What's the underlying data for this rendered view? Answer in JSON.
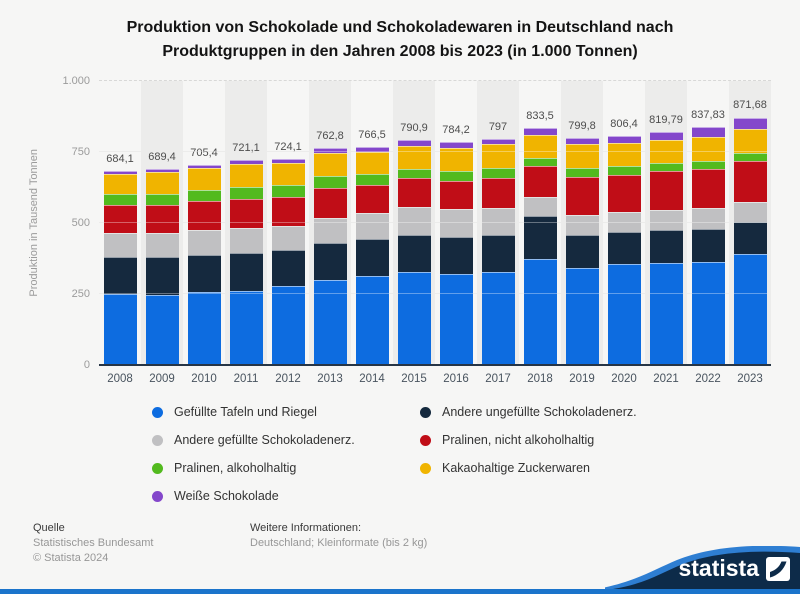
{
  "header": {
    "title_line1": "Produktion von Schokolade und Schokoladewaren in Deutschland nach",
    "title_line2": "Produktgruppen in den Jahren 2008 bis 2023 (in 1.000 Tonnen)"
  },
  "chart_data": {
    "type": "bar",
    "stacked": true,
    "title": "Produktion von Schokolade und Schokoladewaren in Deutschland nach Produktgruppen in den Jahren 2008 bis 2023 (in 1.000 Tonnen)",
    "xlabel": "",
    "ylabel": "Produktion in Tausend Tonnen",
    "ylim": [
      0,
      1000
    ],
    "yticks": [
      {
        "value": 0,
        "label": "0"
      },
      {
        "value": 250,
        "label": "250"
      },
      {
        "value": 500,
        "label": "500"
      },
      {
        "value": 750,
        "label": "750"
      },
      {
        "value": 1000,
        "label": "1.000"
      }
    ],
    "grid": true,
    "plot_bands_alternate": true,
    "legend_position": "bottom-left-two-columns",
    "legend_columns": [
      [
        0,
        2,
        4,
        6
      ],
      [
        1,
        3,
        5
      ]
    ],
    "categories": [
      "2008",
      "2009",
      "2010",
      "2011",
      "2012",
      "2013",
      "2014",
      "2015",
      "2016",
      "2017",
      "2018",
      "2019",
      "2020",
      "2021",
      "2022",
      "2023"
    ],
    "totals_display": [
      "684,1",
      "689,4",
      "705,4",
      "721,1",
      "724,1",
      "762,8",
      "766,5",
      "790,9",
      "784,2",
      "797",
      "833,5",
      "799,8",
      "806,4",
      "819,79",
      "837,83",
      "871,68"
    ],
    "totals": [
      684.1,
      689.4,
      705.4,
      721.1,
      724.1,
      762.8,
      766.5,
      790.9,
      784.2,
      797,
      833.5,
      799.8,
      806.4,
      819.79,
      837.83,
      871.68
    ],
    "series_note": "segment values estimated from bar heights; stacking order is bottom-to-top as listed",
    "series": [
      {
        "name": "Gefüllte Tafeln und Riegel",
        "color": "#0d6ce0",
        "values": [
          250,
          248,
          256,
          261,
          277,
          301,
          315,
          327,
          321,
          327,
          375,
          342,
          356,
          360,
          364,
          390
        ]
      },
      {
        "name": "Andere ungefüllte Schokoladenerz.",
        "color": "#15293e",
        "values": [
          131,
          133,
          132,
          134,
          128,
          130,
          128,
          130,
          129,
          130,
          150,
          116,
          112,
          115,
          116,
          112
        ]
      },
      {
        "name": "Andere gefüllte Schokoladenerz.",
        "color": "#c0c0c2",
        "values": [
          83,
          84,
          86,
          87,
          85,
          88,
          92,
          101,
          98,
          97,
          68,
          72,
          72,
          72,
          72,
          73
        ]
      },
      {
        "name": "Pralinen, nicht alkoholhaltig",
        "color": "#c00d17",
        "values": [
          99,
          100,
          102,
          104,
          102,
          104,
          100,
          99,
          100,
          103,
          107,
          132,
          130,
          135,
          140,
          142
        ]
      },
      {
        "name": "Pralinen, alkoholhaltig",
        "color": "#52ba1e",
        "values": [
          39,
          38,
          40,
          42,
          42,
          42,
          38,
          35,
          36,
          36,
          29,
          32,
          30,
          30,
          28,
          28
        ]
      },
      {
        "name": "Kakaohaltige Zuckerwaren",
        "color": "#f0b400",
        "values": [
          72,
          76,
          78,
          80,
          78,
          82,
          78,
          81,
          82,
          84,
          80,
          84,
          82,
          80,
          84,
          86
        ]
      },
      {
        "name": "Weiße Schokolade",
        "color": "#8447cb",
        "values": [
          10.1,
          10.4,
          11.4,
          13.1,
          12.1,
          15.8,
          15.5,
          17.9,
          18.2,
          20,
          24.5,
          21.8,
          24.4,
          27.79,
          33.83,
          40.68
        ]
      }
    ]
  },
  "footer": {
    "source_label": "Quelle",
    "source_name": "Statistisches Bundesamt",
    "copyright": "© Statista 2024",
    "info_label": "Weitere Informationen:",
    "info_value": "Deutschland; Kleinformate (bis 2 kg)",
    "logo_text": "statista"
  },
  "colors": {
    "background": "#f6f6f5",
    "plot_band": "#ececeb",
    "axis_line": "#263546",
    "badge_navy": "#0d2b49",
    "badge_blue": "#2e7ed2",
    "bottom_strip": "#1b74cb"
  }
}
